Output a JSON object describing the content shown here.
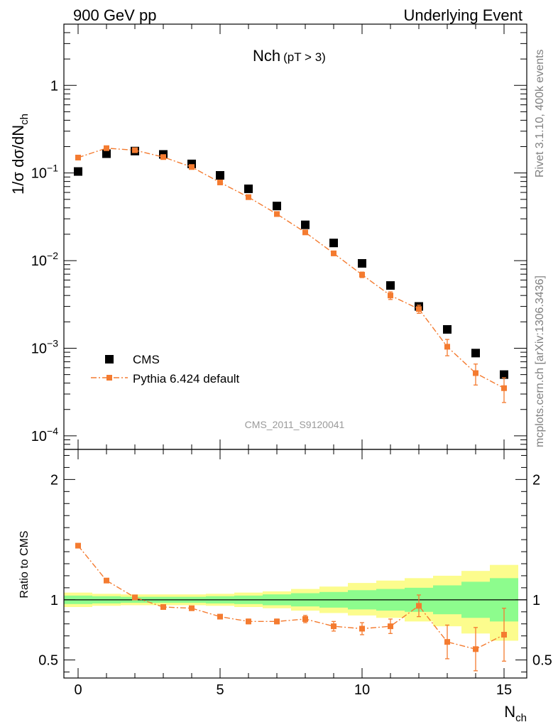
{
  "header": {
    "left": "900 GeV pp",
    "right": "Underlying Event"
  },
  "side_labels": {
    "rivet": "Rivet 3.1.10,  400k events",
    "mcplots": "mcplots.cern.ch [arXiv:1306.3436]"
  },
  "colors": {
    "data": "#000000",
    "mc": "#f47b30",
    "band_inner": "#8dfc8d",
    "band_outer": "#fcfc8d"
  },
  "chart_data": [
    {
      "type": "scatter",
      "panel": "main",
      "title": "Nch",
      "title_suffix": "(pT >  3)",
      "ylabel": "1/σ dσ/dN",
      "ylabel_sub": "ch",
      "yscale": "log",
      "xlim": [
        -0.5,
        15.8
      ],
      "ylim": [
        7e-05,
        5
      ],
      "y_ticks": [
        {
          "value": 1,
          "label": "1",
          "sup": ""
        },
        {
          "value": 0.1,
          "label": "10",
          "sup": "−1"
        },
        {
          "value": 0.01,
          "label": "10",
          "sup": "−2"
        },
        {
          "value": 0.001,
          "label": "10",
          "sup": "−3"
        },
        {
          "value": 0.0001,
          "label": "10",
          "sup": "−4"
        }
      ],
      "watermark": "CMS_2011_S9120041",
      "legend_position": "bottom-left",
      "series": [
        {
          "name": "CMS",
          "style": "square-marker",
          "x": [
            0,
            1,
            2,
            3,
            4,
            5,
            6,
            7,
            8,
            9,
            10,
            11,
            12,
            13,
            14,
            15
          ],
          "y": [
            0.104,
            0.166,
            0.178,
            0.163,
            0.127,
            0.094,
            0.066,
            0.042,
            0.0256,
            0.0159,
            0.0093,
            0.0052,
            0.003,
            0.00164,
            0.00088,
            0.0005
          ]
        },
        {
          "name": "Pythia 6.424 default",
          "style": "dash-dot-line-with-markers",
          "x": [
            0,
            1,
            2,
            3,
            4,
            5,
            6,
            7,
            8,
            9,
            10,
            11,
            12,
            13,
            14,
            15
          ],
          "y": [
            0.15,
            0.192,
            0.182,
            0.152,
            0.117,
            0.078,
            0.053,
            0.034,
            0.021,
            0.0121,
            0.0069,
            0.004,
            0.0028,
            0.00104,
            0.00052,
            0.00035
          ],
          "err": [
            0,
            0,
            0,
            0,
            0,
            0,
            0,
            0,
            0,
            0.0007,
            0.0005,
            0.0004,
            0.0003,
            0.00022,
            0.00014,
            0.00011
          ]
        }
      ]
    },
    {
      "type": "scatter",
      "panel": "ratio",
      "ylabel": "Ratio to CMS",
      "xlabel": "N",
      "xlabel_sub": "ch",
      "xlim": [
        -0.5,
        15.8
      ],
      "ylim": [
        0.35,
        2.25
      ],
      "y_ticks": [
        0.5,
        1,
        2
      ],
      "x_ticks": [
        0,
        5,
        10,
        15
      ],
      "reference_line": 1,
      "bands": {
        "edges": [
          -0.5,
          0.5,
          1.5,
          2.5,
          3.5,
          4.5,
          5.5,
          6.5,
          7.5,
          8.5,
          9.5,
          10.5,
          11.5,
          12.5,
          13.5,
          14.5,
          15.5
        ],
        "outer_low": [
          0.94,
          0.95,
          0.955,
          0.955,
          0.955,
          0.95,
          0.94,
          0.93,
          0.91,
          0.89,
          0.87,
          0.85,
          0.82,
          0.78,
          0.72,
          0.66,
          0.58
        ],
        "outer_high": [
          1.06,
          1.05,
          1.045,
          1.045,
          1.045,
          1.05,
          1.06,
          1.07,
          1.09,
          1.11,
          1.14,
          1.16,
          1.18,
          1.2,
          1.24,
          1.29,
          1.35
        ],
        "inner_low": [
          0.965,
          0.97,
          0.975,
          0.975,
          0.975,
          0.97,
          0.965,
          0.955,
          0.945,
          0.935,
          0.92,
          0.91,
          0.9,
          0.88,
          0.85,
          0.82,
          0.82
        ],
        "inner_high": [
          1.035,
          1.03,
          1.025,
          1.025,
          1.025,
          1.03,
          1.035,
          1.045,
          1.055,
          1.065,
          1.08,
          1.09,
          1.1,
          1.12,
          1.15,
          1.18,
          1.24
        ]
      },
      "series": [
        {
          "name": "Pythia 6.424 default",
          "x": [
            0,
            1,
            2,
            3,
            4,
            5,
            6,
            7,
            8,
            9,
            10,
            11,
            12,
            13,
            14,
            15
          ],
          "y": [
            1.45,
            1.16,
            1.02,
            0.94,
            0.93,
            0.86,
            0.82,
            0.82,
            0.84,
            0.78,
            0.76,
            0.78,
            0.95,
            0.65,
            0.59,
            0.71
          ],
          "err": [
            0,
            0,
            0,
            0,
            0,
            0,
            0.02,
            0.02,
            0.03,
            0.04,
            0.05,
            0.06,
            0.09,
            0.14,
            0.18,
            0.22
          ]
        }
      ]
    }
  ]
}
